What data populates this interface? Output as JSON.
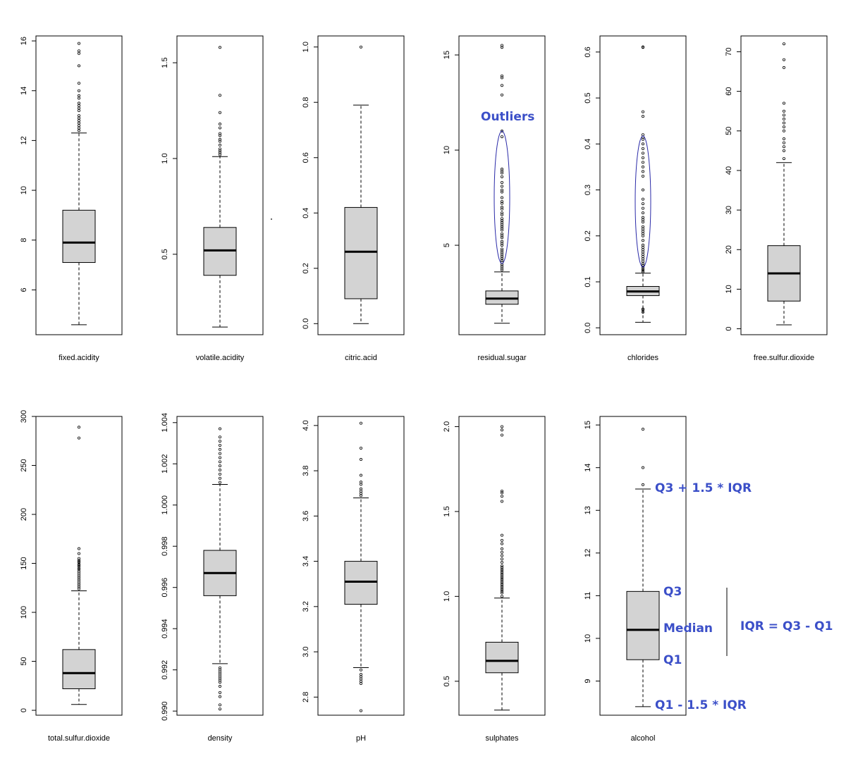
{
  "colors": {
    "box_fill": "#d3d3d3",
    "annotation": "#3b4fc8",
    "outlier_ellipse": "#2a2aa8"
  },
  "chart_data": [
    {
      "type": "boxplot",
      "xlabel": "fixed.acidity",
      "yticks": [
        6,
        8,
        10,
        12,
        14,
        16
      ],
      "ylim": [
        4.2,
        16.2
      ],
      "whisker_low": 4.6,
      "q1": 7.1,
      "median": 7.9,
      "q3": 9.2,
      "whisker_high": 12.3,
      "outliers": [
        12.4,
        12.5,
        12.6,
        12.7,
        12.8,
        12.9,
        13.0,
        13.2,
        13.3,
        13.4,
        13.5,
        13.7,
        13.8,
        14.0,
        14.3,
        15.0,
        15.5,
        15.6,
        15.9
      ]
    },
    {
      "type": "boxplot",
      "xlabel": "volatile.acidity",
      "yticks": [
        0.5,
        1.0,
        1.5
      ],
      "ylim": [
        0.08,
        1.64
      ],
      "whisker_low": 0.12,
      "q1": 0.39,
      "median": 0.52,
      "q3": 0.64,
      "whisker_high": 1.01,
      "outliers": [
        1.02,
        1.03,
        1.04,
        1.05,
        1.07,
        1.09,
        1.1,
        1.12,
        1.13,
        1.16,
        1.18,
        1.24,
        1.33,
        1.58
      ]
    },
    {
      "type": "boxplot",
      "xlabel": "citric.acid",
      "yticks": [
        0.0,
        0.2,
        0.4,
        0.6,
        0.8,
        1.0
      ],
      "ylim": [
        -0.04,
        1.04
      ],
      "whisker_low": 0.0,
      "q1": 0.09,
      "median": 0.26,
      "q3": 0.42,
      "whisker_high": 0.79,
      "outliers": [
        1.0
      ]
    },
    {
      "type": "boxplot",
      "xlabel": "residual.sugar",
      "yticks": [
        5,
        10,
        15
      ],
      "ylim": [
        0.3,
        16.0
      ],
      "whisker_low": 0.9,
      "q1": 1.9,
      "median": 2.2,
      "q3": 2.6,
      "whisker_high": 3.6,
      "outliers": [
        3.7,
        3.8,
        3.9,
        4.0,
        4.1,
        4.2,
        4.3,
        4.4,
        4.5,
        4.6,
        4.7,
        4.8,
        5.0,
        5.1,
        5.2,
        5.4,
        5.5,
        5.6,
        5.8,
        5.9,
        6.0,
        6.1,
        6.2,
        6.3,
        6.4,
        6.6,
        6.7,
        6.9,
        7.0,
        7.2,
        7.3,
        7.5,
        7.8,
        7.9,
        8.1,
        8.3,
        8.6,
        8.8,
        8.9,
        9.0,
        10.7,
        11.0,
        12.9,
        13.4,
        13.8,
        13.9,
        15.4,
        15.5
      ]
    },
    {
      "type": "boxplot",
      "xlabel": "chlorides",
      "yticks": [
        0.0,
        0.1,
        0.2,
        0.3,
        0.4,
        0.5,
        0.6
      ],
      "ylim": [
        -0.015,
        0.635
      ],
      "whisker_low": 0.012,
      "q1": 0.07,
      "median": 0.079,
      "q3": 0.09,
      "whisker_high": 0.119,
      "outliers": [
        0.041,
        0.039,
        0.034,
        0.122,
        0.125,
        0.128,
        0.132,
        0.136,
        0.14,
        0.145,
        0.15,
        0.155,
        0.16,
        0.165,
        0.17,
        0.175,
        0.18,
        0.19,
        0.2,
        0.205,
        0.21,
        0.215,
        0.22,
        0.23,
        0.235,
        0.24,
        0.25,
        0.26,
        0.27,
        0.28,
        0.3,
        0.33,
        0.34,
        0.35,
        0.36,
        0.37,
        0.38,
        0.39,
        0.4,
        0.41,
        0.415,
        0.42,
        0.46,
        0.47,
        0.61,
        0.611
      ]
    },
    {
      "type": "boxplot",
      "xlabel": "free.sulfur.dioxide",
      "yticks": [
        0,
        10,
        20,
        30,
        40,
        50,
        60,
        70
      ],
      "ylim": [
        -1.5,
        74
      ],
      "whisker_low": 1,
      "q1": 7,
      "median": 14,
      "q3": 21,
      "whisker_high": 42,
      "outliers": [
        43,
        45,
        46,
        47,
        48,
        50,
        51,
        52,
        53,
        54,
        55,
        57,
        66,
        68,
        72
      ]
    },
    {
      "type": "boxplot",
      "xlabel": "total.sulfur.dioxide",
      "yticks": [
        0,
        50,
        100,
        150,
        200,
        250,
        300
      ],
      "ylim": [
        -5,
        300
      ],
      "whisker_low": 6,
      "q1": 22,
      "median": 38,
      "q3": 62,
      "whisker_high": 122,
      "outliers": [
        124,
        126,
        128,
        130,
        132,
        134,
        136,
        138,
        140,
        142,
        144,
        145,
        147,
        148,
        149,
        151,
        152,
        153,
        155,
        160,
        165,
        278,
        289
      ]
    },
    {
      "type": "boxplot",
      "xlabel": "density",
      "yticks": [
        0.99,
        0.992,
        0.994,
        0.996,
        0.998,
        1.0,
        1.002,
        1.004
      ],
      "ylim": [
        0.9898,
        1.0043
      ],
      "whisker_low": 0.9923,
      "q1": 0.9956,
      "median": 0.9967,
      "q3": 0.9978,
      "whisker_high": 1.001,
      "outliers": [
        0.9901,
        0.9903,
        0.9907,
        0.9909,
        0.9912,
        0.9914,
        0.9915,
        0.9916,
        0.9917,
        0.9918,
        0.9919,
        0.992,
        0.9921,
        1.0011,
        1.0013,
        1.0015,
        1.0017,
        1.0019,
        1.0021,
        1.0023,
        1.0025,
        1.0027,
        1.0029,
        1.0031,
        1.0033,
        1.0037
      ]
    },
    {
      "type": "boxplot",
      "xlabel": "pH",
      "yticks": [
        2.8,
        3.0,
        3.2,
        3.4,
        3.6,
        3.8,
        4.0
      ],
      "ylim": [
        2.72,
        4.04
      ],
      "whisker_low": 2.93,
      "q1": 3.21,
      "median": 3.31,
      "q3": 3.4,
      "whisker_high": 3.68,
      "outliers": [
        2.74,
        2.86,
        2.87,
        2.88,
        2.89,
        2.9,
        2.92,
        3.69,
        3.7,
        3.71,
        3.72,
        3.74,
        3.75,
        3.78,
        3.85,
        3.9,
        4.01
      ]
    },
    {
      "type": "boxplot",
      "xlabel": "sulphates",
      "yticks": [
        0.5,
        1.0,
        1.5,
        2.0
      ],
      "ylim": [
        0.3,
        2.06
      ],
      "whisker_low": 0.33,
      "q1": 0.55,
      "median": 0.62,
      "q3": 0.73,
      "whisker_high": 0.99,
      "outliers": [
        1.0,
        1.02,
        1.03,
        1.04,
        1.05,
        1.06,
        1.07,
        1.08,
        1.09,
        1.1,
        1.11,
        1.12,
        1.13,
        1.14,
        1.15,
        1.16,
        1.17,
        1.18,
        1.2,
        1.22,
        1.24,
        1.26,
        1.28,
        1.31,
        1.33,
        1.36,
        1.56,
        1.59,
        1.61,
        1.62,
        1.95,
        1.98,
        2.0
      ]
    },
    {
      "type": "boxplot",
      "xlabel": "alcohol",
      "yticks": [
        9,
        10,
        11,
        12,
        13,
        14,
        15
      ],
      "ylim": [
        8.2,
        15.2
      ],
      "whisker_low": 8.4,
      "q1": 9.5,
      "median": 10.2,
      "q3": 11.1,
      "whisker_high": 13.5,
      "outliers": [
        13.6,
        14.0,
        14.9
      ]
    }
  ],
  "annotations": {
    "outliers": "Outliers",
    "q3_whisker": "Q3 + 1.5 * IQR",
    "q3": "Q3",
    "median": "Median",
    "q1": "Q1",
    "q1_whisker": "Q1 - 1.5 * IQR",
    "iqr": "IQR = Q3 - Q1"
  }
}
